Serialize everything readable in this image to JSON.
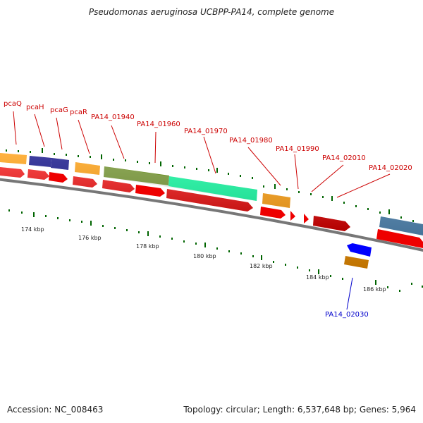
{
  "title": "Pseudomonas aeruginosa UCBPP-PA14, complete genome",
  "footer": {
    "accession": "Accession: NC_008463",
    "topology": "Topology: circular; Length: 6,537,648 bp; Genes: 5,964"
  },
  "colors": {
    "label_red": "#cc0000",
    "label_blue": "#0000cc",
    "gene_arrow": "#ee0000",
    "orange": "#ff9900",
    "navy": "#000080",
    "olive": "#6b8e23",
    "mint": "#00fa9a",
    "steelblue": "#4682b4",
    "blue": "#0000ff",
    "backbone": "#777777",
    "tick_green": "#006400"
  },
  "scale_labels": [
    "174 kbp",
    "176 kbp",
    "178 kbp",
    "180 kbp",
    "182 kbp",
    "184 kbp",
    "186 kbp"
  ],
  "gene_labels": {
    "pcaQ": "pcaQ",
    "pcaH": "pcaH",
    "pcaG": "pcaG",
    "pcaR": "pcaR",
    "pa14_01940": "PA14_01940",
    "pa14_01960": "PA14_01960",
    "pa14_01970": "PA14_01970",
    "pa14_01980": "PA14_01980",
    "pa14_01990": "PA14_01990",
    "pa14_02010": "PA14_02010",
    "pa14_02020": "PA14_02020",
    "pa14_02030": "PA14_02030"
  }
}
